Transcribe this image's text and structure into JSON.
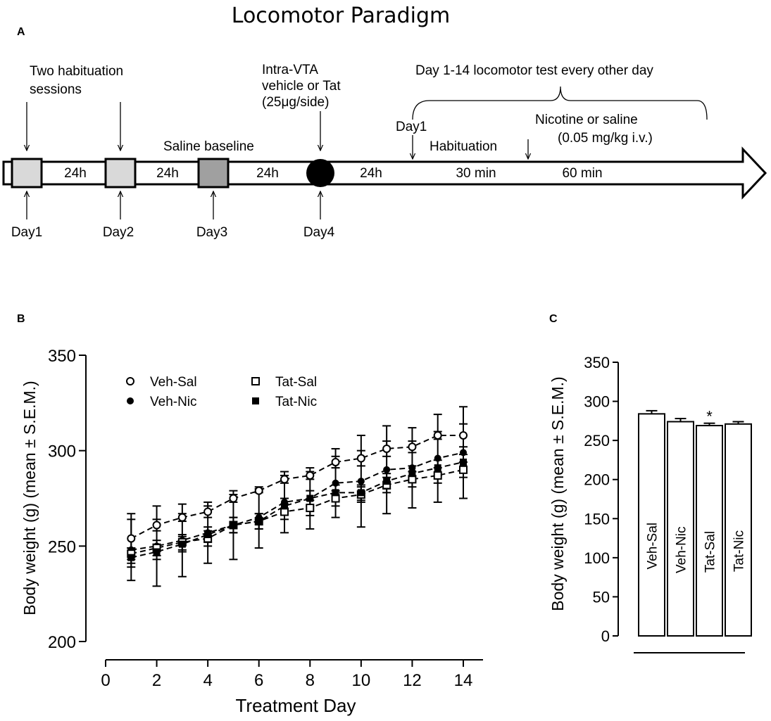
{
  "figure_title": "Locomotor Paradigm",
  "panels": {
    "a": "A",
    "b": "B",
    "c": "C"
  },
  "timeline": {
    "habituation_label": "Two habituation sessions",
    "habituation_line1": "Two habituation",
    "habituation_line2": "sessions",
    "saline_baseline": "Saline baseline",
    "intra_vta_line1": "Intra-VTA",
    "intra_vta_line2": "vehicle or Tat",
    "intra_vta_line3": "(25μg/side)",
    "test_label": "Day 1-14 locomotor test every other day",
    "test_day1": "Day1",
    "habituation_phase": "Habituation",
    "drug_line1": "Nicotine or saline",
    "drug_line2": "(0.05 mg/kg i.v.)",
    "intervals": [
      "24h",
      "24h",
      "24h",
      "24h"
    ],
    "phase_30": "30 min",
    "phase_60": "60 min",
    "days": [
      "Day1",
      "Day2",
      "Day3",
      "Day4"
    ],
    "colors": {
      "habituation_box": "#d9d9d9",
      "baseline_box": "#a0a0a0",
      "injection": "#000000"
    }
  },
  "chart_data": [
    {
      "type": "line",
      "panel": "B",
      "xlabel": "Treatment Day",
      "ylabel": "Body weight (g) (mean ± S.E.M.)",
      "xlim": [
        0,
        15
      ],
      "ylim": [
        200,
        350
      ],
      "xticks": [
        0,
        2,
        4,
        6,
        8,
        10,
        12,
        14
      ],
      "yticks": [
        200,
        250,
        300,
        350
      ],
      "x": [
        1,
        2,
        3,
        4,
        5,
        6,
        7,
        8,
        9,
        10,
        11,
        12,
        13,
        14
      ],
      "legend": {
        "position": "top-left"
      },
      "series": [
        {
          "name": "Veh-Sal",
          "marker": "open-circle",
          "values": [
            254,
            261,
            265,
            268,
            275,
            279,
            285,
            287,
            294,
            296,
            301,
            302,
            308,
            308
          ],
          "err": [
            13,
            3,
            2,
            3,
            2,
            1,
            2,
            2,
            3,
            4,
            4,
            3,
            2,
            6
          ]
        },
        {
          "name": "Veh-Nic",
          "marker": "filled-circle",
          "values": [
            248,
            250,
            253,
            257,
            261,
            265,
            273,
            275,
            283,
            284,
            290,
            291,
            296,
            299
          ],
          "err": [
            16,
            21,
            19,
            16,
            18,
            16,
            16,
            16,
            18,
            24,
            23,
            21,
            23,
            24
          ]
        },
        {
          "name": "Tat-Sal",
          "marker": "open-square",
          "values": [
            246,
            249,
            252,
            254,
            261,
            263,
            268,
            270,
            275,
            277,
            282,
            285,
            287,
            290
          ],
          "err": [
            3,
            4,
            4,
            4,
            4,
            4,
            4,
            4,
            4,
            4,
            4,
            4,
            4,
            4
          ]
        },
        {
          "name": "Tat-Nic",
          "marker": "filled-square",
          "values": [
            244,
            247,
            251,
            256,
            261,
            263,
            271,
            275,
            278,
            278,
            284,
            288,
            291,
            294
          ],
          "err": [
            5,
            4,
            4,
            4,
            4,
            4,
            4,
            4,
            4,
            4,
            4,
            4,
            4,
            4
          ]
        }
      ]
    },
    {
      "type": "bar",
      "panel": "C",
      "ylabel": "Body weight (g) (mean ± S.E.M.)",
      "ylim": [
        0,
        350
      ],
      "yticks": [
        0,
        50,
        100,
        150,
        200,
        250,
        300,
        350
      ],
      "categories": [
        "Veh-Sal",
        "Veh-Nic",
        "Tat-Sal",
        "Tat-Nic"
      ],
      "values": [
        284,
        274,
        269,
        271
      ],
      "err": [
        4,
        4,
        3,
        3
      ],
      "annotations": [
        {
          "category": "Tat-Sal",
          "text": "*"
        }
      ]
    }
  ]
}
